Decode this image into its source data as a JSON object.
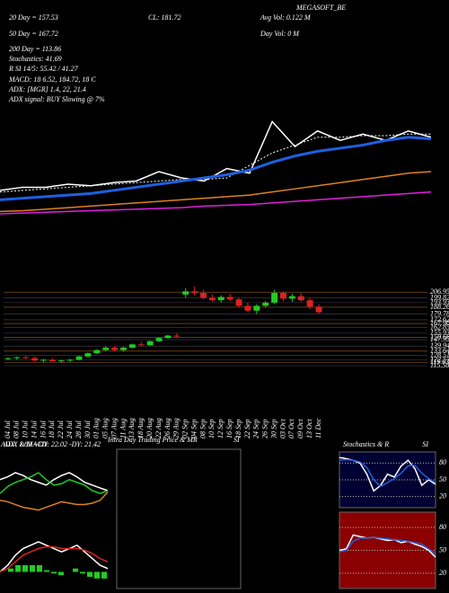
{
  "chart_data": [
    {
      "type": "line",
      "title": "MEGASOFT_BE",
      "annotations": [
        "20 Day = 157.53",
        "CL: 181.72",
        "Avg Vol: 0.122 M",
        "50 Day = 167.72",
        "Day Vol: 0 M",
        "200 Day = 113.86",
        "Stochastics: 41.69",
        "R SI 14/5: 55.42 / 41.27",
        "MACD: 18 6.52, 184.72, 18 C",
        "ADX: [MGR] 1.4, 22, 21.4",
        "ADX signal: BUY Slowing @ 7%"
      ],
      "ylim": [
        95,
        230
      ],
      "series": [
        {
          "color": "#ffffff",
          "values": [
            114,
            116,
            116,
            118,
            117,
            119,
            120,
            126,
            122,
            120,
            128,
            125,
            158,
            142,
            152,
            146,
            150,
            146,
            152,
            148
          ]
        },
        {
          "color": "#ffffff",
          "style": "dotted",
          "values": [
            113,
            114,
            115,
            116,
            117,
            118,
            119,
            120,
            121,
            121,
            122,
            130,
            138,
            143,
            148,
            148,
            149,
            149,
            150,
            150
          ]
        },
        {
          "color": "#1f5fe0",
          "values": [
            108,
            109,
            110,
            111,
            112,
            114,
            116,
            118,
            120,
            122,
            124,
            127,
            132,
            136,
            139,
            141,
            143,
            146,
            148,
            147
          ]
        },
        {
          "color": "#e08020",
          "values": [
            100.5,
            101,
            102,
            103,
            104,
            105,
            106,
            107,
            108,
            109,
            110,
            111,
            113,
            115,
            117,
            119,
            121,
            123,
            125,
            126
          ]
        },
        {
          "color": "#e020e0",
          "values": [
            99,
            99.5,
            100,
            100.5,
            101,
            101.5,
            102,
            102.5,
            103,
            104,
            104.5,
            105,
            106,
            107,
            108,
            109,
            110,
            111,
            112,
            113
          ]
        }
      ]
    },
    {
      "type": "candlestick",
      "categories": [
        "04 Jul",
        "08 Jul",
        "10 Jul",
        "14 Jul",
        "16 Jul",
        "18 Jul",
        "22 Jul",
        "24 Jul",
        "28 Jul",
        "30 Jul",
        "01 Aug",
        "05 Aug",
        "07 Aug",
        "11 Aug",
        "13 Aug",
        "18 Aug",
        "20 Aug",
        "22 Aug",
        "26 Aug",
        "29 Aug",
        "02 Sep",
        "04 Sep",
        "08 Sep",
        "10 Sep",
        "12 Sep",
        "16 Sep",
        "18 Sep",
        "22 Sep",
        "24 Sep",
        "26 Sep",
        "30 Sep",
        "03 Oct",
        "07 Oct",
        "09 Oct",
        "13 Oct",
        "11 Dec"
      ],
      "open": [
        124,
        125,
        126,
        125,
        122,
        123,
        121,
        122,
        123,
        127,
        131,
        135,
        138,
        135,
        138,
        142,
        141,
        146,
        150,
        153,
        204,
        208,
        206,
        200,
        197,
        201,
        198,
        190,
        184,
        190,
        194,
        206,
        199,
        202,
        197,
        189
      ],
      "high": [
        126,
        127,
        128,
        127,
        124,
        125,
        123,
        124,
        128,
        132,
        136,
        140,
        140,
        139,
        143,
        145,
        147,
        151,
        154,
        156,
        212,
        214,
        210,
        204,
        203,
        205,
        200,
        194,
        192,
        196,
        210,
        208,
        205,
        206,
        200,
        192
      ],
      "low": [
        122,
        123,
        124,
        121,
        120,
        121,
        119,
        120,
        122,
        126,
        130,
        134,
        134,
        133,
        137,
        140,
        140,
        145,
        149,
        151,
        200,
        203,
        198,
        195,
        194,
        196,
        188,
        182,
        180,
        188,
        192,
        196,
        195,
        195,
        186,
        180
      ],
      "close": [
        125,
        126,
        125,
        122,
        123,
        121,
        122,
        123,
        127,
        131,
        135,
        138,
        135,
        138,
        142,
        141,
        146,
        150,
        153,
        152,
        208,
        206,
        200,
        197,
        201,
        198,
        190,
        184,
        190,
        194,
        206,
        199,
        202,
        197,
        189,
        182
      ],
      "up_color": "#22cc22",
      "down_color": "#dd2222",
      "ylim": [
        110,
        215
      ],
      "yticks": [
        206.95,
        199.82,
        193.93,
        188.26,
        179.78,
        172.62,
        167.96,
        162.85,
        155.93,
        150.66,
        147.95,
        139.94,
        133.64,
        128.51,
        122.57,
        119.63,
        115.58
      ]
    },
    {
      "type": "line",
      "title": "ADX & MACD",
      "subtitle": "ADX: 1.89 +DY: 22.02 -DY: 21.42",
      "ylim": [
        0,
        50
      ],
      "series": [
        {
          "color": "#ffffff",
          "values": [
            30,
            32,
            35,
            33,
            30,
            28,
            26,
            30,
            33,
            35,
            32,
            28,
            26,
            24,
            22
          ]
        },
        {
          "color": "#22cc22",
          "values": [
            20,
            25,
            28,
            30,
            32,
            35,
            30,
            26,
            27,
            30,
            28,
            26,
            22,
            20,
            22
          ]
        },
        {
          "color": "#e08020",
          "values": [
            15,
            14,
            12,
            10,
            9,
            8,
            10,
            12,
            14,
            13,
            12,
            12,
            13,
            15,
            21
          ]
        }
      ]
    },
    {
      "type": "macd",
      "ylim": [
        -5,
        12
      ],
      "color": "#22cc22",
      "values": [
        0,
        1,
        2,
        2,
        2,
        2,
        0.5,
        -0.5,
        -1,
        0,
        1,
        -0.5,
        -1.5,
        -2,
        -2
      ],
      "series": [
        {
          "color": "#ffffff",
          "values": [
            0,
            2,
            5,
            7,
            8,
            9,
            8,
            7,
            6,
            7,
            8,
            6,
            4,
            2,
            1
          ]
        },
        {
          "color": "#dd2222",
          "values": [
            0,
            1,
            3,
            5,
            6,
            7,
            7.5,
            7.5,
            7,
            7,
            7,
            6.5,
            5.5,
            4,
            3
          ]
        }
      ]
    },
    {
      "type": "empty",
      "title": "Intra Day Trading Price & MR",
      "subtitle": "SI"
    },
    {
      "type": "line",
      "title": "Stochastics & R",
      "subtitle": "SI",
      "background": "#000033",
      "ylim": [
        0,
        100
      ],
      "yticks": [
        80,
        50,
        20
      ],
      "series": [
        {
          "color": "#ffffff",
          "values": [
            90,
            88,
            85,
            80,
            60,
            30,
            40,
            60,
            55,
            75,
            85,
            70,
            40,
            50,
            42
          ]
        },
        {
          "color": "#1f5fe0",
          "values": [
            85,
            86,
            85,
            82,
            72,
            50,
            38,
            45,
            52,
            62,
            75,
            76,
            62,
            52,
            45
          ]
        }
      ]
    },
    {
      "type": "line",
      "background": "#8b0000",
      "ylim": [
        0,
        100
      ],
      "yticks": [
        80,
        50,
        20
      ],
      "series": [
        {
          "color": "#ffffff",
          "values": [
            50,
            52,
            70,
            68,
            66,
            67,
            65,
            63,
            64,
            60,
            62,
            58,
            55,
            50,
            41
          ]
        },
        {
          "color": "#1f5fe0",
          "values": [
            48,
            50,
            62,
            66,
            66,
            67,
            66,
            65,
            64,
            63,
            62,
            60,
            58,
            52,
            45
          ]
        }
      ]
    }
  ]
}
